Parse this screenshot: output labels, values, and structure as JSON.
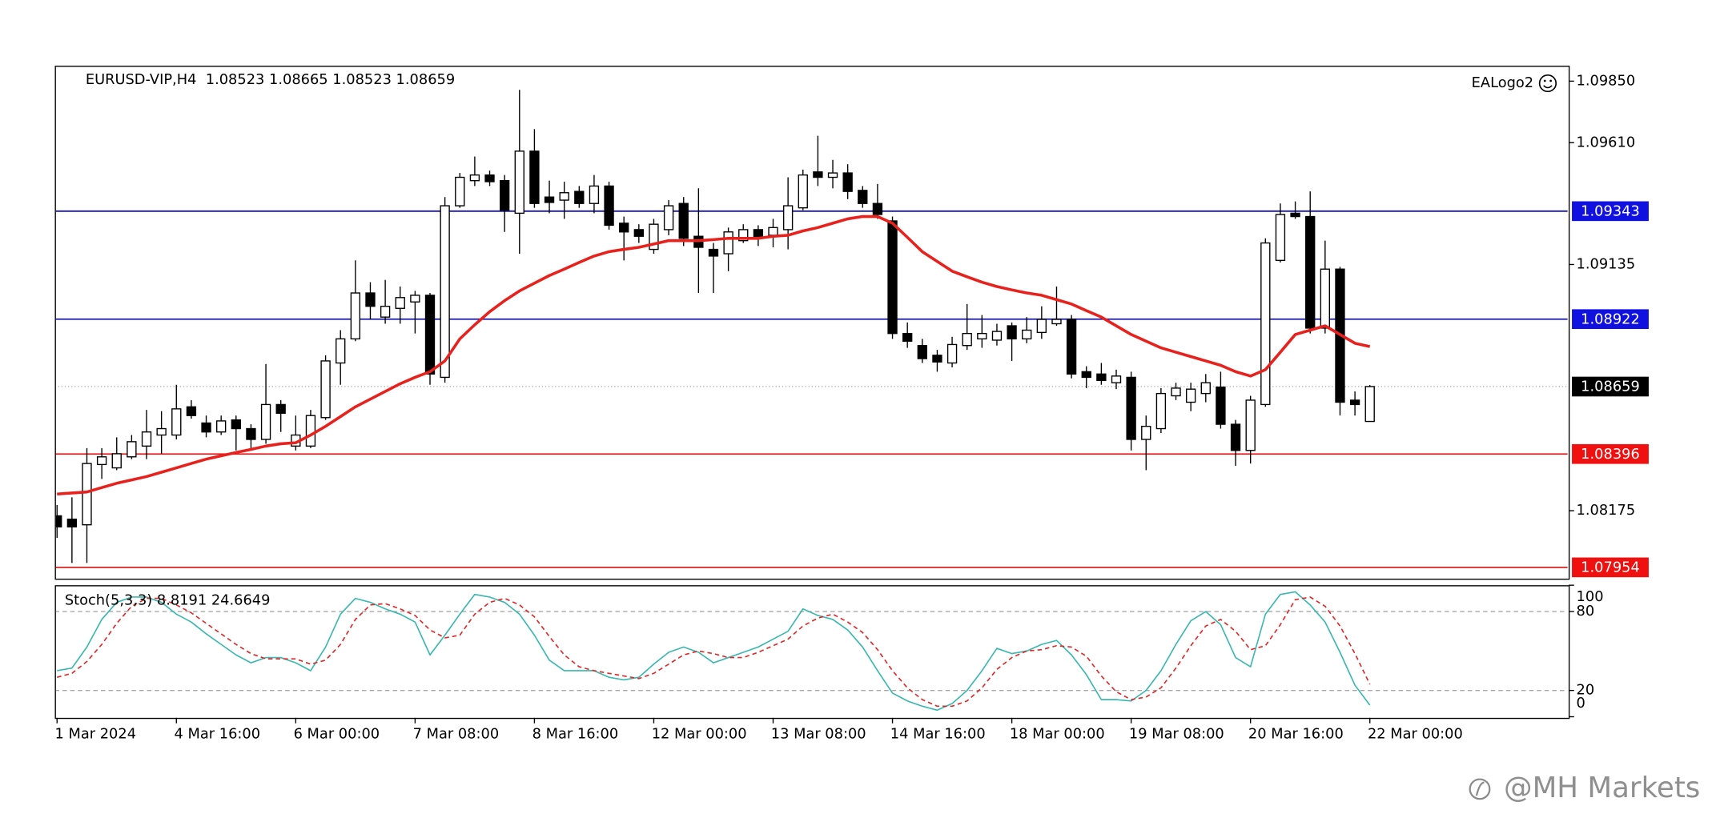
{
  "chart_data": [
    {
      "type": "candlestick",
      "title": "EURUSD-VIP,H4  1.08523 1.08665 1.08523 1.08659",
      "annotation": "EALogo2",
      "categories": [
        "1 Mar 2024",
        null,
        null,
        null,
        null,
        null,
        null,
        null,
        "4 Mar 16:00",
        null,
        null,
        null,
        null,
        null,
        null,
        null,
        "6 Mar 00:00",
        null,
        null,
        null,
        null,
        null,
        null,
        null,
        "7 Mar 08:00",
        null,
        null,
        null,
        null,
        null,
        null,
        null,
        "8 Mar 16:00",
        null,
        null,
        null,
        null,
        null,
        null,
        null,
        "12 Mar 00:00",
        null,
        null,
        null,
        null,
        null,
        null,
        null,
        "13 Mar 08:00",
        null,
        null,
        null,
        null,
        null,
        null,
        null,
        "14 Mar 16:00",
        null,
        null,
        null,
        null,
        null,
        null,
        null,
        "18 Mar 00:00",
        null,
        null,
        null,
        null,
        null,
        null,
        null,
        "19 Mar 08:00",
        null,
        null,
        null,
        null,
        null,
        null,
        null,
        "20 Mar 16:00",
        null,
        null,
        null,
        null,
        null,
        null,
        null,
        "22 Mar 00:00"
      ],
      "open": [
        1.08155,
        1.08142,
        1.0812,
        1.08355,
        1.08342,
        1.08385,
        1.08427,
        1.0847,
        1.0847,
        1.0858,
        1.08517,
        1.08482,
        1.08529,
        1.08495,
        1.08453,
        1.08589,
        1.08427,
        1.08427,
        1.08538,
        1.08751,
        1.08845,
        1.09024,
        1.0893,
        1.08964,
        1.08989,
        1.09015,
        1.08695,
        1.09364,
        1.09462,
        1.09484,
        1.09462,
        1.09335,
        1.09577,
        1.09398,
        1.09386,
        1.0942,
        1.09373,
        1.09441,
        1.09296,
        1.09271,
        1.09194,
        1.09271,
        1.09373,
        1.09245,
        1.09194,
        1.09177,
        1.09228,
        1.09271,
        1.09249,
        1.09271,
        1.09356,
        1.09496,
        1.09475,
        1.09492,
        1.09424,
        1.09373,
        1.09305,
        1.08866,
        1.08819,
        1.08781,
        1.08751,
        1.08819,
        1.08845,
        1.0884,
        1.08896,
        1.08845,
        1.0887,
        1.08904,
        1.08921,
        1.08717,
        1.08708,
        1.08674,
        1.08695,
        1.08453,
        1.08495,
        1.08623,
        1.08598,
        1.08632,
        1.08657,
        1.08512,
        1.0841,
        1.08589,
        1.09151,
        1.09335,
        1.09322,
        1.08887,
        1.09117,
        1.08606,
        1.08523
      ],
      "high": [
        1.08197,
        1.08227,
        1.08419,
        1.08419,
        1.08461,
        1.0847,
        1.08568,
        1.08563,
        1.08666,
        1.08606,
        1.08546,
        1.08546,
        1.08546,
        1.08512,
        1.08747,
        1.08606,
        1.08546,
        1.08568,
        1.08781,
        1.08879,
        1.09151,
        1.09066,
        1.09075,
        1.09049,
        1.09032,
        1.09024,
        1.09398,
        1.09492,
        1.09556,
        1.09501,
        1.09484,
        1.09816,
        1.09663,
        1.09462,
        1.09458,
        1.09441,
        1.09484,
        1.09458,
        1.09322,
        1.09292,
        1.09313,
        1.09386,
        1.09398,
        1.09432,
        1.09219,
        1.09279,
        1.09292,
        1.09288,
        1.09313,
        1.09475,
        1.09505,
        1.09637,
        1.09543,
        1.09526,
        1.09441,
        1.09449,
        1.09322,
        1.08909,
        1.08845,
        1.08802,
        1.08853,
        1.08981,
        1.08938,
        1.08904,
        1.08909,
        1.0893,
        1.08972,
        1.09049,
        1.08938,
        1.08738,
        1.08751,
        1.08725,
        1.08717,
        1.08546,
        1.08653,
        1.08674,
        1.08674,
        1.08708,
        1.08717,
        1.08529,
        1.08623,
        1.09237,
        1.09373,
        1.09381,
        1.0942,
        1.09228,
        1.09126,
        1.0864,
        1.08665
      ],
      "low": [
        1.08069,
        1.07971,
        1.07971,
        1.08299,
        1.08333,
        1.08376,
        1.08376,
        1.08397,
        1.08453,
        1.08534,
        1.08461,
        1.0847,
        1.0841,
        1.08419,
        1.08436,
        1.08482,
        1.0841,
        1.08419,
        1.08529,
        1.08666,
        1.08836,
        1.08921,
        1.08904,
        1.08904,
        1.08866,
        1.08666,
        1.08674,
        1.09356,
        1.09441,
        1.09441,
        1.09262,
        1.09177,
        1.09356,
        1.09335,
        1.09313,
        1.09356,
        1.09335,
        1.09271,
        1.09151,
        1.09219,
        1.09177,
        1.09249,
        1.09207,
        1.09024,
        1.09024,
        1.09109,
        1.09219,
        1.09207,
        1.09202,
        1.09194,
        1.09347,
        1.09441,
        1.09432,
        1.0939,
        1.09356,
        1.09313,
        1.08845,
        1.0881,
        1.08751,
        1.08717,
        1.08734,
        1.08802,
        1.0881,
        1.08819,
        1.08759,
        1.08828,
        1.08845,
        1.08896,
        1.08691,
        1.08653,
        1.08666,
        1.08649,
        1.0841,
        1.08333,
        1.08478,
        1.08606,
        1.08563,
        1.08598,
        1.08495,
        1.0835,
        1.08359,
        1.0858,
        1.09143,
        1.09313,
        1.08866,
        1.08866,
        1.08546,
        1.08546,
        1.08523
      ],
      "close": [
        1.08112,
        1.08112,
        1.08359,
        1.08385,
        1.08397,
        1.08444,
        1.08482,
        1.08495,
        1.08572,
        1.08546,
        1.08482,
        1.08525,
        1.08495,
        1.08453,
        1.08589,
        1.08555,
        1.0847,
        1.08546,
        1.08759,
        1.08845,
        1.09024,
        1.08972,
        1.08972,
        1.09006,
        1.09015,
        1.08708,
        1.09364,
        1.09475,
        1.09484,
        1.09458,
        1.09347,
        1.09577,
        1.09373,
        1.09377,
        1.09415,
        1.09373,
        1.09441,
        1.09288,
        1.09262,
        1.09245,
        1.09292,
        1.09364,
        1.09237,
        1.09202,
        1.09168,
        1.09262,
        1.09271,
        1.09237,
        1.09279,
        1.09364,
        1.09484,
        1.09475,
        1.09492,
        1.0942,
        1.09373,
        1.0933,
        1.08866,
        1.08836,
        1.08768,
        1.08755,
        1.08823,
        1.08866,
        1.08866,
        1.08874,
        1.08845,
        1.08879,
        1.08921,
        1.08921,
        1.08708,
        1.08695,
        1.08683,
        1.087,
        1.08453,
        1.08504,
        1.08632,
        1.08653,
        1.08649,
        1.08674,
        1.08512,
        1.0841,
        1.08606,
        1.09219,
        1.0933,
        1.09322,
        1.08887,
        1.09117,
        1.08598,
        1.08589,
        1.08659
      ],
      "up_color": "#ffffff",
      "down_color": "#000000",
      "series": [
        {
          "color": "#e8211c",
          "values": [
            1.0824,
            1.08244,
            1.08248,
            1.08265,
            1.08282,
            1.08295,
            1.08308,
            1.08325,
            1.08342,
            1.08359,
            1.08376,
            1.08389,
            1.08402,
            1.08414,
            1.08427,
            1.08436,
            1.0844,
            1.0847,
            1.08504,
            1.08542,
            1.0858,
            1.0861,
            1.0864,
            1.0867,
            1.08695,
            1.08717,
            1.08759,
            1.08845,
            1.089,
            1.08951,
            1.08994,
            1.09032,
            1.09062,
            1.09092,
            1.09117,
            1.09143,
            1.09168,
            1.09185,
            1.09194,
            1.09202,
            1.09215,
            1.09228,
            1.09228,
            1.09228,
            1.09232,
            1.09237,
            1.09237,
            1.09237,
            1.09245,
            1.09249,
            1.09266,
            1.09279,
            1.09296,
            1.09313,
            1.09322,
            1.09322,
            1.09296,
            1.09241,
            1.09185,
            1.09147,
            1.09109,
            1.09087,
            1.09066,
            1.09049,
            1.09036,
            1.09024,
            1.09015,
            1.08998,
            1.08981,
            1.08955,
            1.0893,
            1.08896,
            1.08862,
            1.08836,
            1.0881,
            1.08793,
            1.08776,
            1.08759,
            1.08742,
            1.08717,
            1.087,
            1.08725,
            1.08793,
            1.08862,
            1.08879,
            1.08896,
            1.08862,
            1.08828,
            1.08815
          ]
        }
      ],
      "levels": [
        {
          "value": 1.09343,
          "color": "#1a1aa6",
          "label_color": "#1010e0"
        },
        {
          "value": 1.08922,
          "color": "#1a1aa6",
          "label_color": "#1010e0"
        },
        {
          "value": 1.08659,
          "color": "#b0b0b0",
          "label_color": "#000000",
          "dotted": true
        },
        {
          "value": 1.08396,
          "color": "#e02020",
          "label_color": "#f01010"
        },
        {
          "value": 1.07954,
          "color": "#e02020",
          "label_color": "#f01010"
        }
      ],
      "ylim": [
        1.0791,
        1.0991
      ],
      "yticks": [
        {
          "value": 1.0985,
          "label": "1.09850"
        },
        {
          "value": 1.0961,
          "label": "1.09610"
        },
        1.09135,
        1.08175
      ]
    },
    {
      "type": "line",
      "title": "Stoch(5,3,3) 8.8191 24.6649",
      "series": [
        {
          "color": "#3ab7b0",
          "values": [
            35,
            37,
            53,
            74,
            87,
            91,
            91,
            87,
            78,
            72,
            63,
            55,
            47,
            41,
            45,
            45,
            41,
            35,
            53,
            78,
            90,
            87,
            82,
            78,
            72,
            47,
            62,
            78,
            93,
            91,
            87,
            78,
            62,
            43,
            35,
            35,
            35,
            30,
            28,
            30,
            40,
            49,
            53,
            49,
            41,
            45,
            49,
            53,
            59,
            65,
            82,
            77,
            74,
            66,
            53,
            35,
            18,
            12,
            8,
            5,
            10,
            20,
            35,
            52,
            48,
            50,
            55,
            58,
            47,
            32,
            13,
            13,
            12,
            20,
            35,
            55,
            73,
            80,
            70,
            45,
            38,
            78,
            93,
            95,
            85,
            72,
            49,
            24,
            8.8191
          ]
        },
        {
          "color": "#e02828",
          "dashed": true,
          "values": [
            30,
            33,
            42,
            55,
            71,
            84,
            90,
            90,
            85,
            79,
            71,
            63,
            55,
            48,
            44,
            44,
            44,
            40,
            43,
            55,
            74,
            85,
            86,
            82,
            77,
            66,
            60,
            62,
            78,
            87,
            90,
            85,
            76,
            61,
            47,
            38,
            35,
            33,
            31,
            29,
            33,
            40,
            47,
            50,
            48,
            45,
            45,
            49,
            54,
            59,
            69,
            75,
            78,
            72,
            64,
            51,
            35,
            22,
            13,
            8,
            8,
            12,
            22,
            36,
            45,
            50,
            51,
            54,
            53,
            46,
            31,
            19,
            13,
            15,
            22,
            37,
            54,
            69,
            74,
            65,
            51,
            54,
            70,
            89,
            91,
            84,
            69,
            48,
            24.6649
          ]
        }
      ],
      "levels": [
        80,
        20
      ],
      "ylim": [
        0,
        100
      ],
      "yticks": [
        100,
        80,
        20,
        0
      ]
    }
  ],
  "watermark": "@MH Markets"
}
